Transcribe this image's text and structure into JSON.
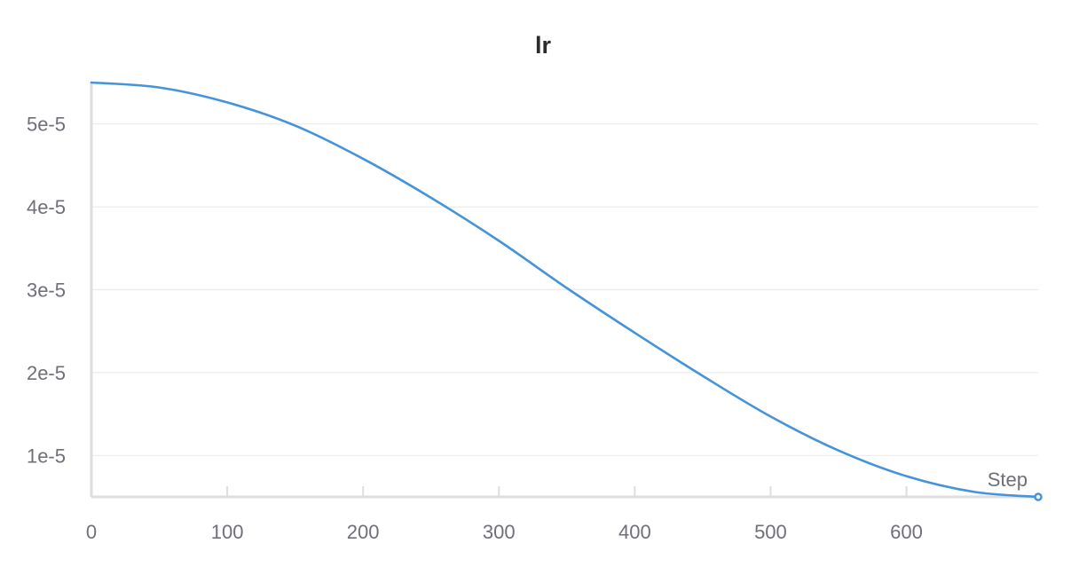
{
  "chart_data": {
    "type": "line",
    "title": "lr",
    "xlabel": "Step",
    "ylabel": "",
    "xlim": [
      0,
      697
    ],
    "ylim": [
      5e-06,
      5.5e-05
    ],
    "x_ticks": [
      {
        "value": 0,
        "label": "0"
      },
      {
        "value": 100,
        "label": "100"
      },
      {
        "value": 200,
        "label": "200"
      },
      {
        "value": 300,
        "label": "300"
      },
      {
        "value": 400,
        "label": "400"
      },
      {
        "value": 500,
        "label": "500"
      },
      {
        "value": 600,
        "label": "600"
      }
    ],
    "y_ticks": [
      {
        "value": 1e-05,
        "label": "1e-5"
      },
      {
        "value": 2e-05,
        "label": "2e-5"
      },
      {
        "value": 3e-05,
        "label": "3e-5"
      },
      {
        "value": 4e-05,
        "label": "4e-5"
      },
      {
        "value": 5e-05,
        "label": "5e-5"
      }
    ],
    "grid": true,
    "color": "#4593d9",
    "series": [
      {
        "values": [
          [
            0,
            5.5e-05
          ],
          [
            50,
            5.44e-05
          ],
          [
            100,
            5.26e-05
          ],
          [
            150,
            4.98e-05
          ],
          [
            200,
            4.58e-05
          ],
          [
            250,
            4.11e-05
          ],
          [
            300,
            3.59e-05
          ],
          [
            350,
            3.02e-05
          ],
          [
            400,
            2.48e-05
          ],
          [
            450,
            1.96e-05
          ],
          [
            500,
            1.47e-05
          ],
          [
            550,
            1.06e-05
          ],
          [
            600,
            7.5e-06
          ],
          [
            650,
            5.6e-06
          ],
          [
            697,
            5e-06
          ]
        ]
      }
    ]
  }
}
